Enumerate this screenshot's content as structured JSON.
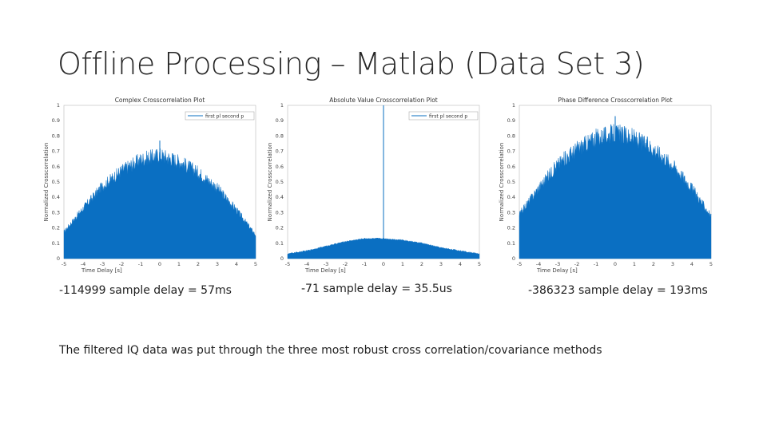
{
  "slide": {
    "title": "Offline Processing – Matlab (Data Set 3)",
    "note": "The filtered IQ data was put through the three most robust cross correlation/covariance methods"
  },
  "colors": {
    "fill": "#0a6fc2",
    "axis": "#555555",
    "grid": "#d9d9d9"
  },
  "chart_data": [
    {
      "type": "area",
      "title": "Complex Crosscorrelation Plot",
      "xlabel": "Time Delay [s]",
      "ylabel": "Normalized Crosscorrelation",
      "legend": [
        "first pl",
        "second p"
      ],
      "legend_position": "top-right",
      "xlim": [
        -5,
        5
      ],
      "ylim": [
        0,
        1
      ],
      "xticks": [
        "-5",
        "-4",
        "-3",
        "-2",
        "-1",
        "0",
        "1",
        "2",
        "3",
        "4",
        "5"
      ],
      "yticks": [
        "0",
        "0.1",
        "0.2",
        "0.3",
        "0.4",
        "0.5",
        "0.6",
        "0.7",
        "0.8",
        "0.9",
        "1"
      ],
      "envelope": {
        "x": [
          -5,
          -4,
          -3,
          -2,
          -1,
          0,
          1,
          2,
          3,
          4,
          5
        ],
        "y": [
          0.17,
          0.32,
          0.46,
          0.56,
          0.63,
          0.66,
          0.62,
          0.55,
          0.45,
          0.31,
          0.15
        ]
      },
      "peak": {
        "x": 0,
        "y": 0.77
      },
      "caption": "-114999 sample delay = 57ms"
    },
    {
      "type": "area",
      "title": "Absolute Value Crosscorrelation Plot",
      "xlabel": "Time Delay [s]",
      "ylabel": "Normalized Crosscorrelation",
      "legend": [
        "first pl",
        "second p"
      ],
      "legend_position": "top-right",
      "xlim": [
        -5,
        5
      ],
      "ylim": [
        0,
        1
      ],
      "xticks": [
        "-5",
        "-4",
        "-3",
        "-2",
        "-1",
        "0",
        "1",
        "2",
        "3",
        "4",
        "5"
      ],
      "yticks": [
        "0",
        "0.1",
        "0.2",
        "0.3",
        "0.4",
        "0.5",
        "0.6",
        "0.7",
        "0.8",
        "0.9",
        "1"
      ],
      "envelope": {
        "x": [
          -5,
          -4,
          -3,
          -2,
          -1,
          0,
          1,
          2,
          3,
          4,
          5
        ],
        "y": [
          0.03,
          0.05,
          0.08,
          0.11,
          0.13,
          0.13,
          0.12,
          0.1,
          0.07,
          0.05,
          0.03
        ]
      },
      "peak": {
        "x": 0,
        "y": 1.0
      },
      "caption": "-71 sample delay = 35.5us"
    },
    {
      "type": "area",
      "title": "Phase Difference Crosscorrelation Plot",
      "xlabel": "Time Delay [s]",
      "ylabel": "Normalized Crosscorrelation",
      "legend": [],
      "xlim": [
        -5,
        5
      ],
      "ylim": [
        0,
        1
      ],
      "xticks": [
        "-5",
        "-4",
        "-3",
        "-2",
        "-1",
        "0",
        "1",
        "2",
        "3",
        "4",
        "5"
      ],
      "yticks": [
        "0",
        "0.1",
        "0.2",
        "0.3",
        "0.4",
        "0.5",
        "0.6",
        "0.7",
        "0.8",
        "0.9",
        "1"
      ],
      "envelope": {
        "x": [
          -5,
          -4,
          -3,
          -2,
          -1,
          0,
          1,
          2,
          3,
          4,
          5
        ],
        "y": [
          0.28,
          0.45,
          0.6,
          0.7,
          0.77,
          0.8,
          0.77,
          0.7,
          0.6,
          0.45,
          0.27
        ]
      },
      "peak": {
        "x": 0,
        "y": 0.93
      },
      "caption": "-386323 sample delay = 193ms"
    }
  ]
}
